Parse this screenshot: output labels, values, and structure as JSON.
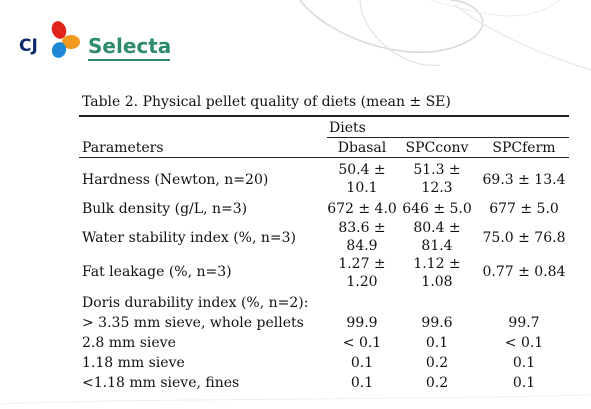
{
  "logo": {
    "mark": "CJ",
    "brand": "Selecta"
  },
  "caption": "Table 2. Physical pellet quality of diets (mean ± SE)",
  "table": {
    "group_header": "Diets",
    "headers": [
      "Parameters",
      "Dbasal",
      "SPCconv",
      "SPCferm"
    ],
    "rows": [
      {
        "param": "Hardness (Newton, n=20)",
        "c1": [
          "50.4 ±",
          "10.1"
        ],
        "c2": [
          "51.3 ±",
          "12.3"
        ],
        "c3": "69.3 ± 13.4"
      },
      {
        "param": "Bulk density (g/L, n=3)",
        "c1": "672 ± 4.0",
        "c2": "646 ± 5.0",
        "c3": "677 ± 5.0"
      },
      {
        "param": "Water stability index (%, n=3)",
        "c1": [
          "83.6 ±",
          "84.9"
        ],
        "c2": [
          "80.4 ±",
          "81.4"
        ],
        "c3": "75.0 ± 76.8"
      },
      {
        "param": "Fat leakage (%, n=3)",
        "c1": [
          "1.27 ±",
          "1.20"
        ],
        "c2": [
          "1.12 ±",
          "1.08"
        ],
        "c3": "0.77 ± 0.84"
      },
      {
        "param": "Doris durability index (%, n=2):"
      },
      {
        "param": "> 3.35 mm sieve, whole pellets",
        "c1": "99.9",
        "c2": "99.6",
        "c3": "99.7"
      },
      {
        "param": "2.8 mm sieve",
        "c1": "< 0.1",
        "c2": "0.1",
        "c3": "< 0.1"
      },
      {
        "param": "1.18 mm sieve",
        "c1": "0.1",
        "c2": "0.2",
        "c3": "0.1"
      },
      {
        "param": "<1.18 mm sieve, fines",
        "c1": "0.1",
        "c2": "0.2",
        "c3": "0.1"
      }
    ]
  },
  "colors": {
    "logo_navy": "#0a2a6b",
    "logo_green": "#2e8b6f",
    "logo_orange": "#f29a1f",
    "logo_red": "#e2231a",
    "logo_blue": "#1e88d6"
  }
}
